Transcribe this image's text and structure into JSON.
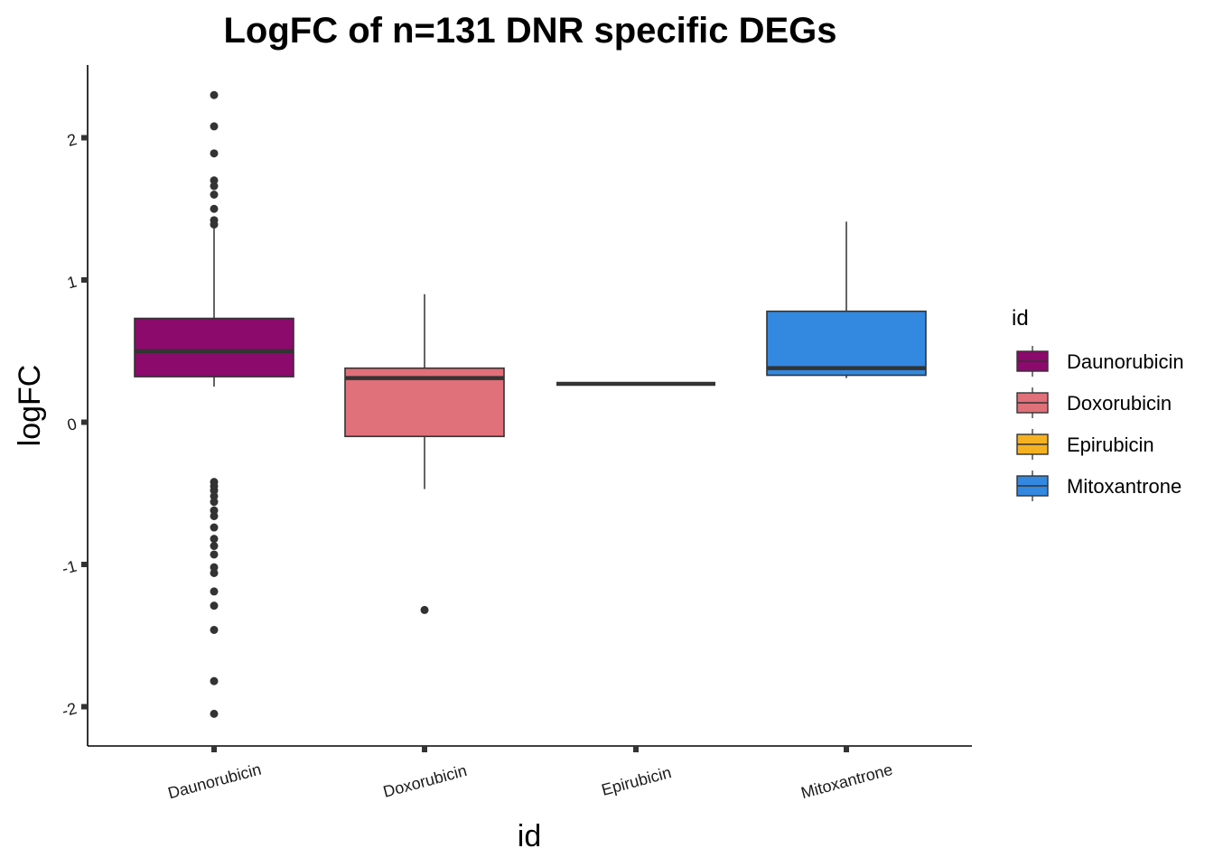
{
  "chart_data": {
    "type": "boxplot",
    "title": "LogFC of n=131 DNR specific DEGs",
    "xlabel": "id",
    "ylabel": "logFC",
    "ylim": [
      -2.27,
      2.5
    ],
    "yticks": [
      -2,
      -1,
      0,
      1,
      2
    ],
    "grid": false,
    "legend": {
      "title": "id",
      "position": "right",
      "entries": [
        "Daunorubicin",
        "Doxorubicin",
        "Epirubicin",
        "Mitoxantrone"
      ]
    },
    "categories": [
      "Daunorubicin",
      "Doxorubicin",
      "Epirubicin",
      "Mitoxantrone"
    ],
    "series": [
      {
        "category": "Daunorubicin",
        "color": "#8B0A6B",
        "whisker_low": 0.25,
        "q1": 0.32,
        "median": 0.5,
        "q3": 0.73,
        "whisker_high": 1.37,
        "outliers": [
          2.3,
          2.08,
          1.89,
          1.7,
          1.66,
          1.6,
          1.5,
          1.42,
          1.39,
          -0.42,
          -0.45,
          -0.48,
          -0.52,
          -0.56,
          -0.62,
          -0.66,
          -0.74,
          -0.82,
          -0.87,
          -0.93,
          -1.02,
          -1.06,
          -1.19,
          -1.29,
          -1.46,
          -1.82,
          -2.05
        ]
      },
      {
        "category": "Doxorubicin",
        "color": "#E07079",
        "whisker_low": -0.47,
        "q1": -0.1,
        "median": 0.31,
        "q3": 0.38,
        "whisker_high": 0.9,
        "outliers": [
          -1.32
        ]
      },
      {
        "category": "Epirubicin",
        "color": "#F4B223",
        "whisker_low": 0.27,
        "q1": 0.27,
        "median": 0.27,
        "q3": 0.27,
        "whisker_high": 0.27,
        "outliers": []
      },
      {
        "category": "Mitoxantrone",
        "color": "#3388E0",
        "whisker_low": 0.31,
        "q1": 0.33,
        "median": 0.38,
        "q3": 0.78,
        "whisker_high": 1.41,
        "outliers": []
      }
    ]
  }
}
